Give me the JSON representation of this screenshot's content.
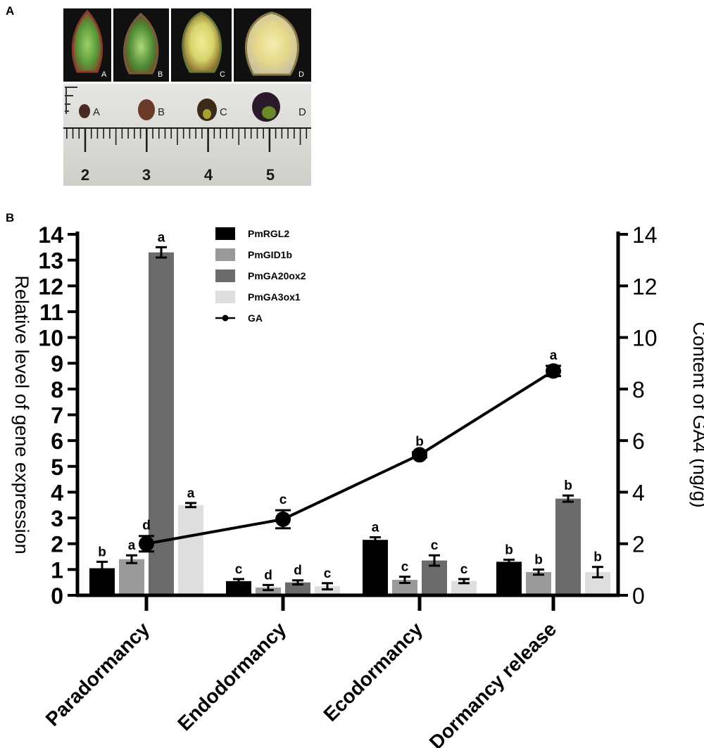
{
  "panel_a": {
    "label": "A",
    "bud_labels": [
      "A",
      "B",
      "C",
      "D"
    ],
    "ruler_numbers": [
      "2",
      "3",
      "4",
      "5"
    ]
  },
  "panel_b": {
    "label": "B"
  },
  "colors": {
    "PmRGL2": "#000000",
    "PmGID1b": "#9a9a9a",
    "PmGA20ox2": "#6b6b6b",
    "PmGA3ox1": "#dedede",
    "GA": "#000000"
  },
  "chart_data": {
    "type": "bar",
    "categories": [
      "Paradormancy",
      "Endodormancy",
      "Ecodormancy",
      "Dormancy release"
    ],
    "series": [
      {
        "name": "PmRGL2",
        "values": [
          1.05,
          0.55,
          2.15,
          1.3
        ],
        "errors": [
          0.25,
          0.08,
          0.1,
          0.08
        ],
        "letters": [
          "b",
          "c",
          "a",
          "b"
        ]
      },
      {
        "name": "PmGID1b",
        "values": [
          1.4,
          0.3,
          0.6,
          0.9
        ],
        "errors": [
          0.15,
          0.1,
          0.12,
          0.1
        ],
        "letters": [
          "a",
          "d",
          "c",
          "b"
        ]
      },
      {
        "name": "PmGA20ox2",
        "values": [
          13.3,
          0.5,
          1.35,
          3.75
        ],
        "errors": [
          0.2,
          0.08,
          0.2,
          0.12
        ],
        "letters": [
          "a",
          "d",
          "c",
          "b"
        ]
      },
      {
        "name": "PmGA3ox1",
        "values": [
          3.5,
          0.35,
          0.55,
          0.9
        ],
        "errors": [
          0.08,
          0.12,
          0.08,
          0.2
        ],
        "letters": [
          "a",
          "c",
          "c",
          "b"
        ]
      }
    ],
    "line_series": {
      "name": "GA",
      "axis": "right",
      "values": [
        2.0,
        2.95,
        5.45,
        8.7
      ],
      "errors": [
        0.3,
        0.35,
        0.1,
        0.2
      ],
      "letters": [
        "d",
        "c",
        "b",
        "a"
      ]
    },
    "ylabel": "Relative level of gene expression",
    "y2label": "Content of GA4 (ng/g)",
    "ylim": [
      0,
      14
    ],
    "y2lim": [
      0,
      14
    ],
    "yticks": [
      "0",
      "1",
      "2",
      "3",
      "4",
      "5",
      "6",
      "7",
      "8",
      "9",
      "10",
      "11",
      "12",
      "13",
      "14"
    ],
    "y2ticks": [
      "0",
      "2",
      "4",
      "6",
      "8",
      "10",
      "12",
      "14"
    ],
    "legend": [
      "PmRGL2",
      "PmGID1b",
      "PmGA20ox2",
      "PmGA3ox1",
      "GA"
    ],
    "legend_position": "top-center"
  }
}
